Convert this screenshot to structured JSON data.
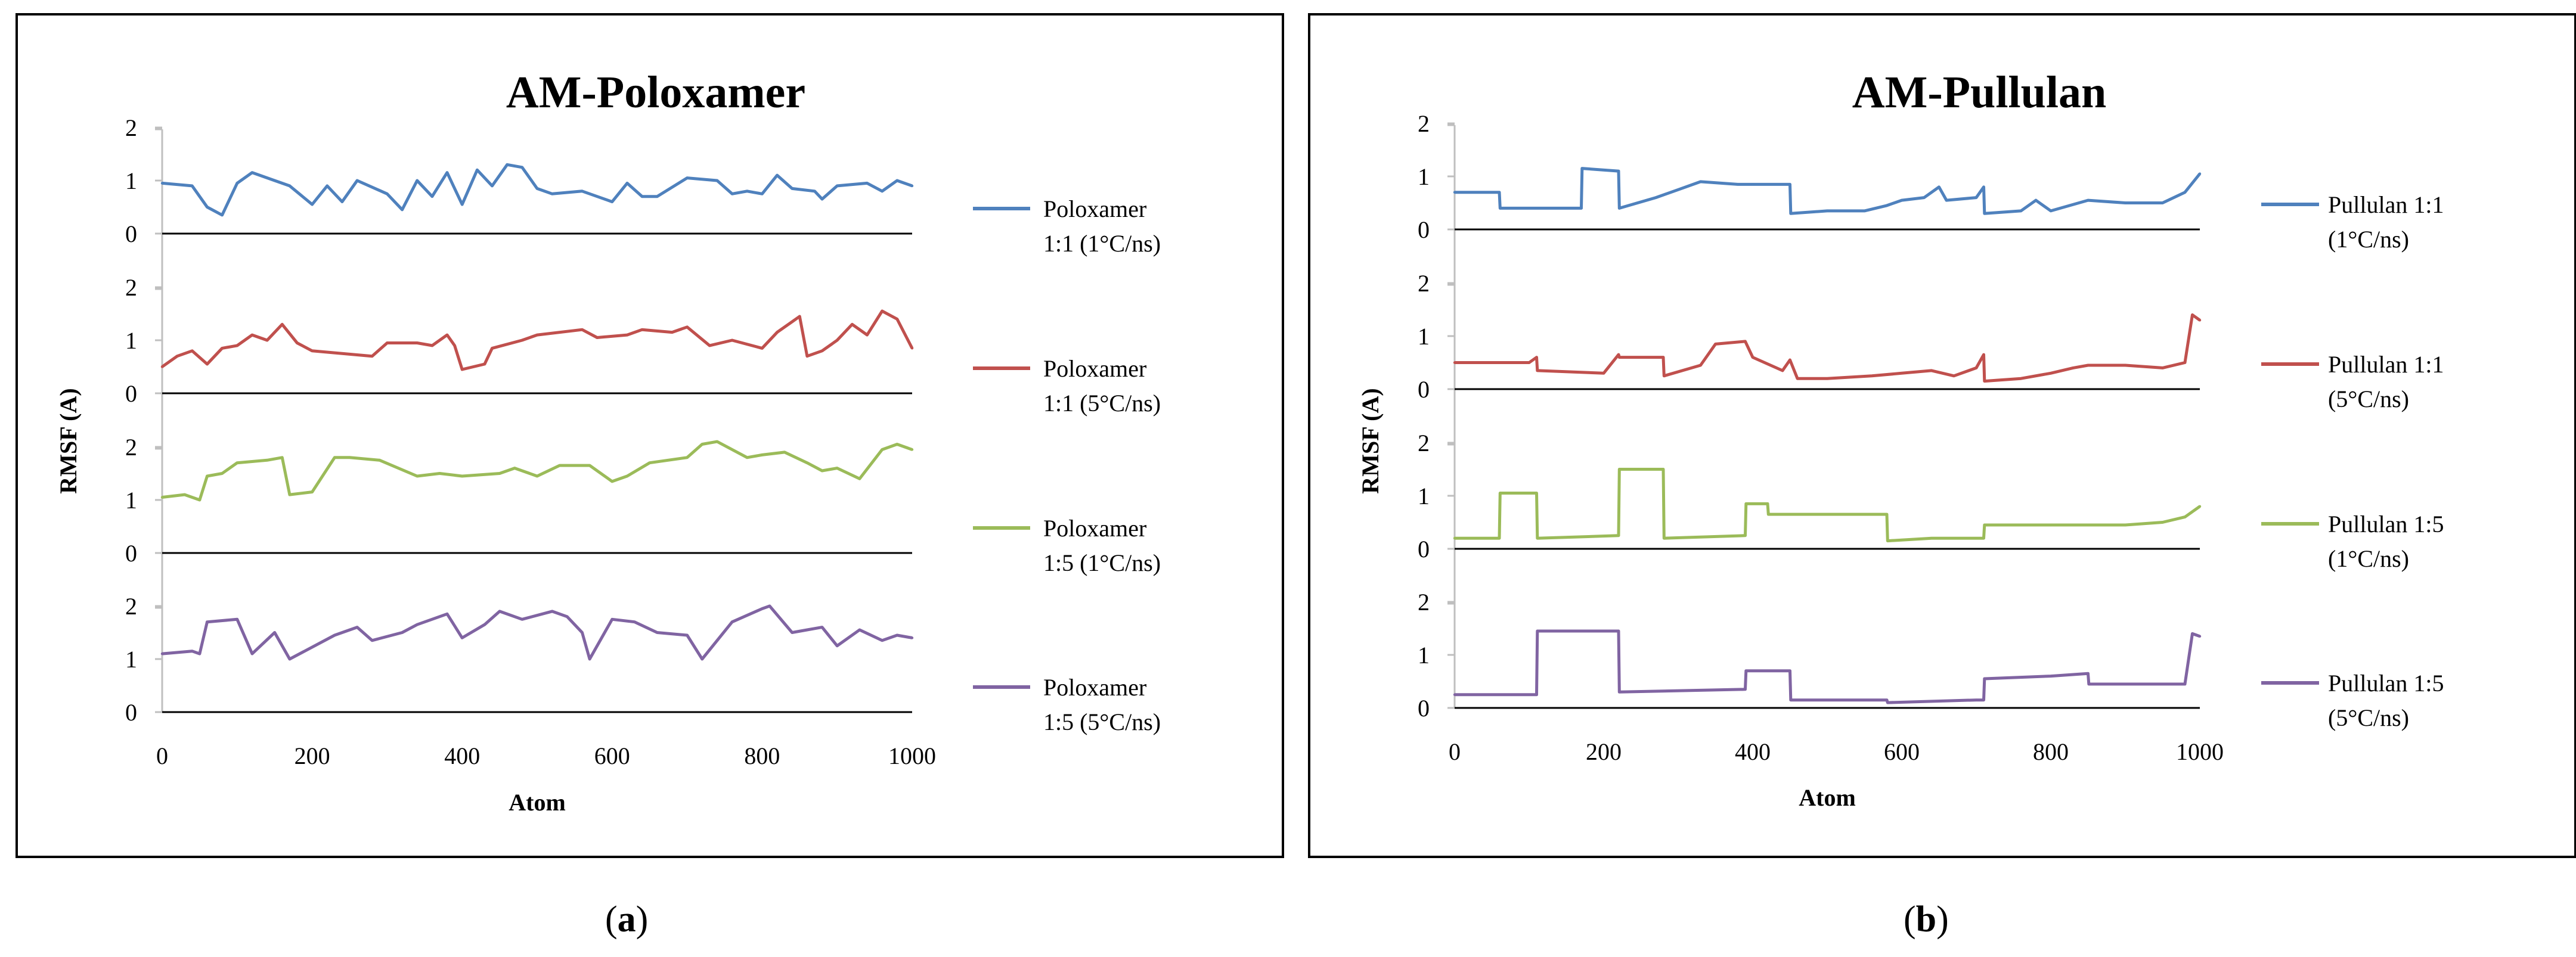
{
  "panel_labels": [
    {
      "open": "(",
      "letter": "a",
      "close": ")"
    },
    {
      "open": "(",
      "letter": "b",
      "close": ")"
    }
  ],
  "chart_data": [
    {
      "type": "line",
      "title": "AM-Poloxamer",
      "xlabel": "Atom",
      "ylabel": "RMSF (A)",
      "xlim": [
        0,
        1000
      ],
      "ylim": [
        0,
        2
      ],
      "x_ticks": [
        0,
        200,
        400,
        600,
        800,
        1000
      ],
      "y_ticks": [
        0,
        1,
        2
      ],
      "stacked_panels": true,
      "grid": false,
      "legend": "right",
      "series": [
        {
          "name_lines": [
            "Poloxamer",
            "1:1 (1°C/ns)"
          ],
          "color": "#4F81BD",
          "x": [
            0,
            40,
            60,
            80,
            100,
            120,
            150,
            170,
            200,
            220,
            240,
            260,
            300,
            320,
            340,
            360,
            380,
            400,
            420,
            440,
            460,
            480,
            500,
            520,
            560,
            580,
            600,
            620,
            640,
            660,
            700,
            740,
            760,
            780,
            800,
            820,
            840,
            870,
            880,
            900,
            940,
            960,
            980,
            1000
          ],
          "values": [
            0.95,
            0.9,
            0.5,
            0.35,
            0.95,
            1.15,
            1.0,
            0.9,
            0.55,
            0.9,
            0.6,
            1.0,
            0.75,
            0.45,
            1.0,
            0.7,
            1.15,
            0.55,
            1.2,
            0.9,
            1.3,
            1.25,
            0.85,
            0.75,
            0.8,
            0.7,
            0.6,
            0.95,
            0.7,
            0.7,
            1.05,
            1.0,
            0.75,
            0.8,
            0.75,
            1.1,
            0.85,
            0.8,
            0.65,
            0.9,
            0.95,
            0.8,
            1.0,
            0.9
          ]
        },
        {
          "name_lines": [
            "Poloxamer",
            "1:1 (5°C/ns)"
          ],
          "color": "#C0504D",
          "x": [
            0,
            20,
            40,
            60,
            80,
            100,
            120,
            140,
            160,
            180,
            200,
            240,
            280,
            300,
            340,
            360,
            380,
            390,
            400,
            430,
            440,
            480,
            500,
            560,
            580,
            620,
            640,
            680,
            700,
            730,
            760,
            800,
            820,
            840,
            850,
            860,
            880,
            900,
            920,
            940,
            960,
            980,
            1000
          ],
          "values": [
            0.5,
            0.7,
            0.8,
            0.55,
            0.85,
            0.9,
            1.1,
            1.0,
            1.3,
            0.95,
            0.8,
            0.75,
            0.7,
            0.95,
            0.95,
            0.9,
            1.1,
            0.9,
            0.45,
            0.55,
            0.85,
            1.0,
            1.1,
            1.2,
            1.05,
            1.1,
            1.2,
            1.15,
            1.25,
            0.9,
            1.0,
            0.85,
            1.15,
            1.35,
            1.45,
            0.7,
            0.8,
            1.0,
            1.3,
            1.1,
            1.55,
            1.4,
            0.85
          ]
        },
        {
          "name_lines": [
            "Poloxamer",
            "1:5 (1°C/ns)"
          ],
          "color": "#9BBB59",
          "x": [
            0,
            30,
            50,
            60,
            80,
            100,
            140,
            160,
            170,
            200,
            230,
            250,
            290,
            340,
            370,
            400,
            450,
            470,
            500,
            530,
            570,
            600,
            620,
            650,
            700,
            720,
            740,
            780,
            800,
            830,
            860,
            880,
            900,
            930,
            960,
            980,
            1000
          ],
          "values": [
            1.05,
            1.1,
            1.0,
            1.45,
            1.5,
            1.7,
            1.75,
            1.8,
            1.1,
            1.15,
            1.8,
            1.8,
            1.75,
            1.45,
            1.5,
            1.45,
            1.5,
            1.6,
            1.45,
            1.65,
            1.65,
            1.35,
            1.45,
            1.7,
            1.8,
            2.05,
            2.1,
            1.8,
            1.85,
            1.9,
            1.7,
            1.55,
            1.6,
            1.4,
            1.95,
            2.05,
            1.95
          ]
        },
        {
          "name_lines": [
            "Poloxamer",
            "1:5 (5°C/ns)"
          ],
          "color": "#8064A2",
          "x": [
            0,
            40,
            50,
            60,
            100,
            120,
            150,
            170,
            230,
            260,
            280,
            320,
            340,
            380,
            400,
            430,
            450,
            480,
            520,
            540,
            560,
            570,
            600,
            630,
            660,
            700,
            720,
            760,
            800,
            810,
            840,
            860,
            880,
            900,
            930,
            960,
            980,
            1000
          ],
          "values": [
            1.1,
            1.15,
            1.1,
            1.7,
            1.75,
            1.1,
            1.5,
            1.0,
            1.45,
            1.6,
            1.35,
            1.5,
            1.65,
            1.85,
            1.4,
            1.65,
            1.9,
            1.75,
            1.9,
            1.8,
            1.5,
            1.0,
            1.75,
            1.7,
            1.5,
            1.45,
            1.0,
            1.7,
            1.95,
            2.0,
            1.5,
            1.55,
            1.6,
            1.25,
            1.55,
            1.35,
            1.45,
            1.4
          ]
        }
      ]
    },
    {
      "type": "line",
      "title": "AM-Pullulan",
      "xlabel": "Atom",
      "ylabel": "RMSF (A)",
      "xlim": [
        0,
        1000
      ],
      "ylim": [
        0,
        2
      ],
      "x_ticks": [
        0,
        200,
        400,
        600,
        800,
        1000
      ],
      "y_ticks": [
        0,
        1,
        2
      ],
      "stacked_panels": true,
      "grid": false,
      "legend": "right",
      "series": [
        {
          "name_lines": [
            "Pullulan 1:1",
            "(1°C/ns)"
          ],
          "color": "#4F81BD",
          "x": [
            0,
            60,
            61,
            170,
            171,
            220,
            221,
            270,
            300,
            330,
            380,
            400,
            450,
            451,
            500,
            550,
            580,
            600,
            630,
            650,
            660,
            700,
            710,
            711,
            760,
            780,
            800,
            850,
            900,
            950,
            980,
            1000
          ],
          "values": [
            0.7,
            0.7,
            0.4,
            0.4,
            1.15,
            1.1,
            0.4,
            0.6,
            0.75,
            0.9,
            0.85,
            0.85,
            0.85,
            0.3,
            0.35,
            0.35,
            0.45,
            0.55,
            0.6,
            0.8,
            0.55,
            0.6,
            0.8,
            0.3,
            0.35,
            0.55,
            0.35,
            0.55,
            0.5,
            0.5,
            0.7,
            1.05
          ]
        },
        {
          "name_lines": [
            "Pullulan 1:1",
            "(5°C/ns)"
          ],
          "color": "#C0504D",
          "x": [
            0,
            100,
            110,
            111,
            200,
            220,
            221,
            280,
            281,
            330,
            350,
            390,
            400,
            440,
            450,
            460,
            500,
            560,
            600,
            640,
            670,
            700,
            710,
            711,
            760,
            800,
            830,
            850,
            900,
            950,
            980,
            990,
            1000
          ],
          "values": [
            0.5,
            0.5,
            0.6,
            0.35,
            0.3,
            0.65,
            0.6,
            0.6,
            0.25,
            0.45,
            0.85,
            0.9,
            0.6,
            0.35,
            0.55,
            0.2,
            0.2,
            0.25,
            0.3,
            0.35,
            0.25,
            0.4,
            0.65,
            0.15,
            0.2,
            0.3,
            0.4,
            0.45,
            0.45,
            0.4,
            0.5,
            1.4,
            1.3
          ]
        },
        {
          "name_lines": [
            "Pullulan 1:5",
            "(1°C/ns)"
          ],
          "color": "#9BBB59",
          "x": [
            0,
            60,
            61,
            110,
            111,
            220,
            221,
            280,
            281,
            390,
            391,
            420,
            421,
            580,
            581,
            640,
            700,
            710,
            711,
            800,
            850,
            900,
            950,
            980,
            1000
          ],
          "values": [
            0.2,
            0.2,
            1.05,
            1.05,
            0.2,
            0.25,
            1.5,
            1.5,
            0.2,
            0.25,
            0.85,
            0.85,
            0.65,
            0.65,
            0.15,
            0.2,
            0.2,
            0.2,
            0.45,
            0.45,
            0.45,
            0.45,
            0.5,
            0.6,
            0.8
          ]
        },
        {
          "name_lines": [
            "Pullulan 1:5",
            "(5°C/ns)"
          ],
          "color": "#8064A2",
          "x": [
            0,
            110,
            111,
            220,
            221,
            390,
            391,
            450,
            451,
            580,
            581,
            700,
            710,
            711,
            800,
            850,
            851,
            980,
            990,
            1000
          ],
          "values": [
            0.25,
            0.25,
            1.45,
            1.45,
            0.3,
            0.35,
            0.7,
            0.7,
            0.15,
            0.15,
            0.1,
            0.15,
            0.15,
            0.55,
            0.6,
            0.65,
            0.45,
            0.45,
            1.4,
            1.35
          ]
        }
      ]
    }
  ]
}
